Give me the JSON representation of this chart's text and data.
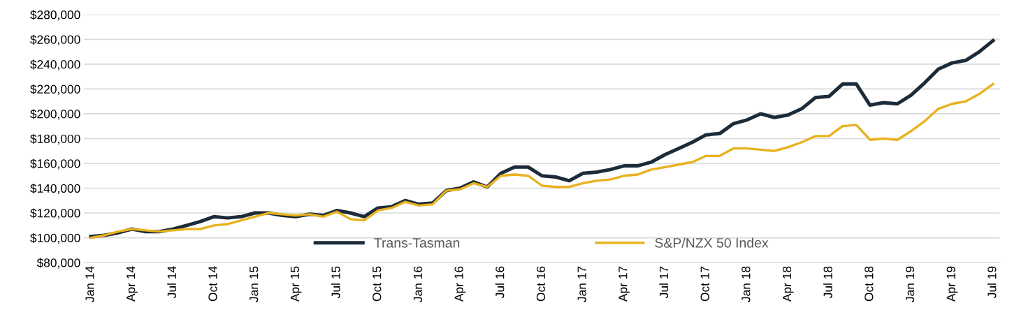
{
  "chart_data": {
    "type": "line",
    "categories": [
      "Jan 14",
      null,
      null,
      "Apr 14",
      null,
      null,
      "Jul 14",
      null,
      null,
      "Oct 14",
      null,
      null,
      "Jan 15",
      null,
      null,
      "Apr 15",
      null,
      null,
      "Jul 15",
      null,
      null,
      "Oct 15",
      null,
      null,
      "Jan 16",
      null,
      null,
      "Apr 16",
      null,
      null,
      "Jul 16",
      null,
      null,
      "Oct 16",
      null,
      null,
      "Jan 17",
      null,
      null,
      "Apr 17",
      null,
      null,
      "Jul 17",
      null,
      null,
      "Oct 17",
      null,
      null,
      "Jan 18",
      null,
      null,
      "Apr 18",
      null,
      null,
      "Jul 18",
      null,
      null,
      "Oct 18",
      null,
      null,
      "Jan 19",
      null,
      null,
      "Apr 19",
      null,
      null,
      "Jul 19"
    ],
    "series": [
      {
        "name": "Trans-Tasman",
        "color": "#1c2b39",
        "values": [
          101000,
          102000,
          104000,
          107000,
          105000,
          105000,
          107000,
          110000,
          113000,
          117000,
          116000,
          117000,
          120000,
          120000,
          118000,
          117000,
          119000,
          118000,
          122000,
          120000,
          117000,
          124000,
          125000,
          130000,
          127000,
          128000,
          138000,
          140000,
          145000,
          141000,
          152000,
          157000,
          157000,
          150000,
          149000,
          146000,
          152000,
          153000,
          155000,
          158000,
          158000,
          161000,
          167000,
          172000,
          177000,
          183000,
          184000,
          192000,
          195000,
          200000,
          197000,
          199000,
          204000,
          213000,
          214000,
          224000,
          224000,
          207000,
          209000,
          208000,
          215000,
          225000,
          236000,
          241000,
          243000,
          250000,
          259000
        ]
      },
      {
        "name": "S&P/NZX 50 Index",
        "color": "#e8b21e",
        "values": [
          100000,
          102000,
          105000,
          107000,
          106000,
          105000,
          106000,
          107000,
          107000,
          110000,
          111000,
          114000,
          117000,
          120000,
          119000,
          118000,
          119000,
          117000,
          121000,
          115000,
          114000,
          122000,
          124000,
          129000,
          126000,
          127000,
          138000,
          139000,
          144000,
          141000,
          150000,
          151000,
          150000,
          142000,
          141000,
          141000,
          144000,
          146000,
          147000,
          150000,
          151000,
          155000,
          157000,
          159000,
          161000,
          166000,
          166000,
          172000,
          172000,
          171000,
          170000,
          173000,
          177000,
          182000,
          182000,
          190000,
          191000,
          179000,
          180000,
          179000,
          186000,
          194000,
          204000,
          208000,
          210000,
          216000,
          224000
        ]
      }
    ],
    "ylim": [
      80000,
      280000
    ],
    "yticks": [
      {
        "value": 80000,
        "label": "$80,000"
      },
      {
        "value": 100000,
        "label": "$100,000"
      },
      {
        "value": 120000,
        "label": "$120,000"
      },
      {
        "value": 140000,
        "label": "$140,000"
      },
      {
        "value": 160000,
        "label": "$160,000"
      },
      {
        "value": 180000,
        "label": "$180,000"
      },
      {
        "value": 200000,
        "label": "$200,000"
      },
      {
        "value": 220000,
        "label": "$220,000"
      },
      {
        "value": 240000,
        "label": "$240,000"
      },
      {
        "value": 260000,
        "label": "$260,000"
      },
      {
        "value": 280000,
        "label": "$280,000"
      }
    ],
    "grid": "y",
    "legend": "bottom",
    "marker": "none",
    "line_style": "solid"
  }
}
